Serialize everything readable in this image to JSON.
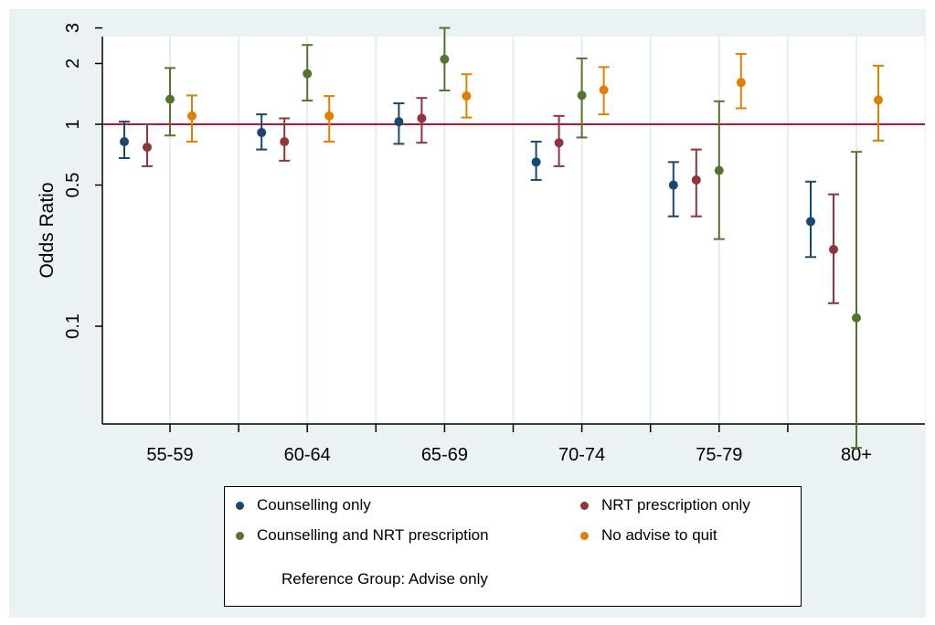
{
  "chart_data": {
    "type": "scatter",
    "subtype": "point-estimate with error bars",
    "ylabel": "Odds Ratio",
    "xlabel": "",
    "y_scale": "log",
    "ylim": [
      0.02,
      3.4
    ],
    "y_ticks": [
      {
        "value": 3,
        "label": "3"
      },
      {
        "value": 2,
        "label": "2"
      },
      {
        "value": 1,
        "label": "1"
      },
      {
        "value": 0.5,
        "label": "0.5"
      },
      {
        "value": 0.1,
        "label": "0.1"
      }
    ],
    "reference_line": {
      "value": 1,
      "color": "#c8102e"
    },
    "grid": "vertical",
    "legend_position": "bottom",
    "categories": [
      "55-59",
      "60-64",
      "65-69",
      "70-74",
      "75-79",
      "80+"
    ],
    "series": [
      {
        "name": "Counselling only",
        "color": "#1a476f",
        "points": [
          {
            "est": 0.82,
            "lo": 0.68,
            "hi": 1.03
          },
          {
            "est": 0.91,
            "lo": 0.75,
            "hi": 1.12
          },
          {
            "est": 1.03,
            "lo": 0.8,
            "hi": 1.27
          },
          {
            "est": 0.65,
            "lo": 0.53,
            "hi": 0.82
          },
          {
            "est": 0.5,
            "lo": 0.35,
            "hi": 0.65
          },
          {
            "est": 0.33,
            "lo": 0.22,
            "hi": 0.52
          }
        ]
      },
      {
        "name": "NRT prescription only",
        "color": "#90353b",
        "points": [
          {
            "est": 0.77,
            "lo": 0.62,
            "hi": 1.0
          },
          {
            "est": 0.82,
            "lo": 0.66,
            "hi": 1.07
          },
          {
            "est": 1.07,
            "lo": 0.81,
            "hi": 1.35
          },
          {
            "est": 0.81,
            "lo": 0.62,
            "hi": 1.1
          },
          {
            "est": 0.53,
            "lo": 0.35,
            "hi": 0.75
          },
          {
            "est": 0.24,
            "lo": 0.13,
            "hi": 0.45
          }
        ]
      },
      {
        "name": "Counselling and NRT prescription",
        "color": "#55752f",
        "points": [
          {
            "est": 1.33,
            "lo": 0.88,
            "hi": 1.9
          },
          {
            "est": 1.78,
            "lo": 1.31,
            "hi": 2.47
          },
          {
            "est": 2.1,
            "lo": 1.47,
            "hi": 3.0
          },
          {
            "est": 1.39,
            "lo": 0.86,
            "hi": 2.12
          },
          {
            "est": 0.59,
            "lo": 0.27,
            "hi": 1.3
          },
          {
            "est": 0.11,
            "lo": 0.025,
            "hi": 0.73
          }
        ]
      },
      {
        "name": "No advise to quit",
        "color": "#e37e00",
        "points": [
          {
            "est": 1.1,
            "lo": 0.82,
            "hi": 1.39
          },
          {
            "est": 1.1,
            "lo": 0.82,
            "hi": 1.38
          },
          {
            "est": 1.38,
            "lo": 1.08,
            "hi": 1.77
          },
          {
            "est": 1.48,
            "lo": 1.12,
            "hi": 1.92
          },
          {
            "est": 1.61,
            "lo": 1.2,
            "hi": 2.23
          },
          {
            "est": 1.32,
            "lo": 0.83,
            "hi": 1.95
          }
        ]
      }
    ],
    "legend_note": "Reference Group: Advise only"
  },
  "colors": {
    "background": "#eaf2f3",
    "plot_area": "#ffffff",
    "grid": "#e5edee"
  }
}
